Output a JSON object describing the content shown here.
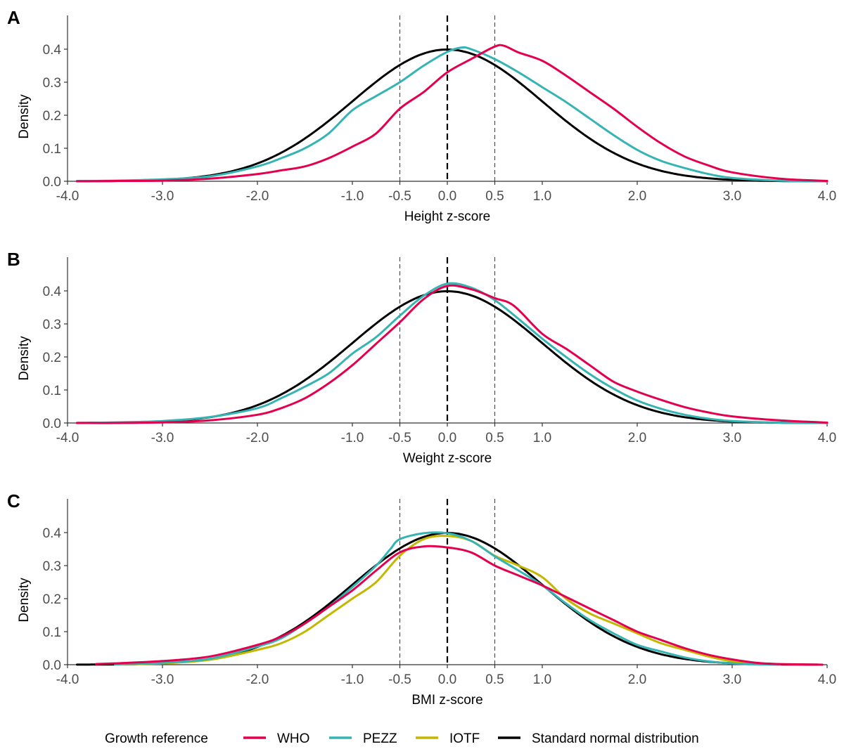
{
  "legend": {
    "title": "Growth reference",
    "items": [
      {
        "name": "WHO",
        "color": "#E4004E"
      },
      {
        "name": "PEZZ",
        "color": "#36B4B4"
      },
      {
        "name": "IOTF",
        "color": "#C2B800"
      },
      {
        "name": "Standard normal distribution",
        "color": "#000000"
      }
    ]
  },
  "chart_data": [
    {
      "type": "line",
      "panel": "A",
      "title": "",
      "xlabel": "Height z-score",
      "ylabel": "Density",
      "xlim": [
        -4,
        4
      ],
      "ylim": [
        0,
        0.5
      ],
      "xticks": [
        "-4.0",
        "-3.0",
        "-2.0",
        "-1.0",
        "-0.5",
        "0.0",
        "0.5",
        "1.0",
        "2.0",
        "3.0",
        "4.0"
      ],
      "xtick_values": [
        -4,
        -3,
        -2,
        -1,
        -0.5,
        0,
        0.5,
        1,
        2,
        3,
        4
      ],
      "yticks": [
        "0.0",
        "0.1",
        "0.2",
        "0.3",
        "0.4"
      ],
      "ytick_values": [
        0,
        0.1,
        0.2,
        0.3,
        0.4
      ],
      "reference_lines": [
        -0.5,
        0,
        0.5
      ],
      "grid": false,
      "legend_position": "bottom",
      "series": [
        {
          "name": "Standard normal distribution",
          "color": "#000000",
          "normal": true,
          "x": [],
          "y": []
        },
        {
          "name": "PEZZ",
          "color": "#36B4B4",
          "x": [
            -3.9,
            -3.5,
            -3,
            -2.5,
            -2,
            -1.75,
            -1.5,
            -1.25,
            -1,
            -0.75,
            -0.5,
            -0.25,
            0,
            0.15,
            0.25,
            0.5,
            0.75,
            1,
            1.25,
            1.5,
            1.75,
            2,
            2.25,
            2.5,
            2.75,
            3,
            3.5,
            4
          ],
          "y": [
            0.001,
            0.002,
            0.006,
            0.015,
            0.045,
            0.07,
            0.1,
            0.145,
            0.215,
            0.258,
            0.3,
            0.35,
            0.392,
            0.405,
            0.4,
            0.37,
            0.33,
            0.285,
            0.24,
            0.19,
            0.14,
            0.095,
            0.062,
            0.04,
            0.022,
            0.01,
            0.002,
            0.0
          ]
        },
        {
          "name": "WHO",
          "color": "#E4004E",
          "x": [
            -3.9,
            -3.5,
            -3,
            -2.5,
            -2,
            -1.75,
            -1.5,
            -1.25,
            -1,
            -0.75,
            -0.5,
            -0.25,
            0,
            0.25,
            0.5,
            0.6,
            0.75,
            1,
            1.25,
            1.5,
            1.75,
            2,
            2.25,
            2.5,
            2.75,
            3,
            3.5,
            4
          ],
          "y": [
            0.0,
            0.001,
            0.002,
            0.008,
            0.022,
            0.033,
            0.045,
            0.07,
            0.105,
            0.145,
            0.22,
            0.27,
            0.33,
            0.37,
            0.408,
            0.41,
            0.39,
            0.365,
            0.32,
            0.27,
            0.22,
            0.165,
            0.115,
            0.075,
            0.048,
            0.027,
            0.008,
            0.001
          ]
        }
      ]
    },
    {
      "type": "line",
      "panel": "B",
      "title": "",
      "xlabel": "Weight z-score",
      "ylabel": "Density",
      "xlim": [
        -4,
        4
      ],
      "ylim": [
        0,
        0.5
      ],
      "xticks": [
        "-4.0",
        "-3.0",
        "-2.0",
        "-1.0",
        "-0.5",
        "0.0",
        "0.5",
        "1.0",
        "2.0",
        "3.0",
        "4.0"
      ],
      "xtick_values": [
        -4,
        -3,
        -2,
        -1,
        -0.5,
        0,
        0.5,
        1,
        2,
        3,
        4
      ],
      "yticks": [
        "0.0",
        "0.1",
        "0.2",
        "0.3",
        "0.4"
      ],
      "ytick_values": [
        0,
        0.1,
        0.2,
        0.3,
        0.4
      ],
      "reference_lines": [
        -0.5,
        0,
        0.5
      ],
      "grid": false,
      "legend_position": "bottom",
      "series": [
        {
          "name": "Standard normal distribution",
          "color": "#000000",
          "normal": true,
          "x": [],
          "y": []
        },
        {
          "name": "PEZZ",
          "color": "#36B4B4",
          "x": [
            -3.9,
            -3.5,
            -3,
            -2.5,
            -2,
            -1.75,
            -1.5,
            -1.25,
            -1,
            -0.75,
            -0.5,
            -0.25,
            0,
            0.25,
            0.5,
            0.75,
            1,
            1.25,
            1.5,
            1.75,
            2,
            2.25,
            2.5,
            2.75,
            3,
            3.5,
            4
          ],
          "y": [
            0.0,
            0.002,
            0.006,
            0.018,
            0.045,
            0.075,
            0.11,
            0.15,
            0.21,
            0.26,
            0.325,
            0.385,
            0.422,
            0.41,
            0.372,
            0.315,
            0.255,
            0.2,
            0.148,
            0.104,
            0.068,
            0.043,
            0.025,
            0.013,
            0.006,
            0.001,
            0.0
          ]
        },
        {
          "name": "WHO",
          "color": "#E4004E",
          "x": [
            -3.9,
            -3.5,
            -3,
            -2.5,
            -2,
            -1.75,
            -1.5,
            -1.25,
            -1,
            -0.75,
            -0.5,
            -0.25,
            0,
            0.25,
            0.5,
            0.7,
            1,
            1.25,
            1.5,
            1.75,
            2,
            2.25,
            2.5,
            2.75,
            3,
            3.5,
            4
          ],
          "y": [
            0.0,
            0.0,
            0.002,
            0.008,
            0.025,
            0.045,
            0.075,
            0.12,
            0.175,
            0.24,
            0.305,
            0.375,
            0.415,
            0.405,
            0.378,
            0.355,
            0.27,
            0.225,
            0.175,
            0.125,
            0.095,
            0.07,
            0.048,
            0.032,
            0.02,
            0.008,
            0.001
          ]
        }
      ]
    },
    {
      "type": "line",
      "panel": "C",
      "title": "",
      "xlabel": "BMI z-score",
      "ylabel": "Density",
      "xlim": [
        -4,
        4
      ],
      "ylim": [
        0,
        0.5
      ],
      "xticks": [
        "-4.0",
        "-3.0",
        "-2.0",
        "-1.0",
        "-0.5",
        "0.0",
        "0.5",
        "1.0",
        "2.0",
        "3.0",
        "4.0"
      ],
      "xtick_values": [
        -4,
        -3,
        -2,
        -1,
        -0.5,
        0,
        0.5,
        1,
        2,
        3,
        4
      ],
      "yticks": [
        "0.0",
        "0.1",
        "0.2",
        "0.3",
        "0.4"
      ],
      "ytick_values": [
        0,
        0.1,
        0.2,
        0.3,
        0.4
      ],
      "reference_lines": [
        -0.5,
        0,
        0.5
      ],
      "grid": false,
      "legend_position": "bottom",
      "series": [
        {
          "name": "Standard normal distribution",
          "color": "#000000",
          "normal": true,
          "x": [],
          "y": []
        },
        {
          "name": "IOTF",
          "color": "#C2B800",
          "x": [
            -3.5,
            -3,
            -2.5,
            -2,
            -1.75,
            -1.5,
            -1.25,
            -1,
            -0.75,
            -0.5,
            -0.25,
            0,
            0.25,
            0.5,
            0.75,
            1,
            1.25,
            1.5,
            1.75,
            2,
            2.25,
            2.5,
            2.75,
            3,
            3.25,
            3.5
          ],
          "y": [
            0.001,
            0.004,
            0.015,
            0.045,
            0.065,
            0.1,
            0.15,
            0.2,
            0.25,
            0.33,
            0.38,
            0.39,
            0.375,
            0.33,
            0.3,
            0.265,
            0.2,
            0.155,
            0.125,
            0.095,
            0.065,
            0.045,
            0.025,
            0.01,
            0.003,
            0.0
          ]
        },
        {
          "name": "PEZZ",
          "color": "#36B4B4",
          "x": [
            -3.5,
            -3,
            -2.5,
            -2,
            -1.75,
            -1.5,
            -1.25,
            -1,
            -0.75,
            -0.6,
            -0.5,
            -0.25,
            0,
            0.25,
            0.5,
            0.75,
            1,
            1.25,
            1.5,
            1.75,
            2,
            2.25,
            2.5,
            2.75,
            3,
            3.25,
            3.5
          ],
          "y": [
            0.001,
            0.006,
            0.018,
            0.055,
            0.08,
            0.125,
            0.175,
            0.235,
            0.3,
            0.35,
            0.38,
            0.398,
            0.398,
            0.375,
            0.328,
            0.285,
            0.24,
            0.185,
            0.135,
            0.095,
            0.06,
            0.04,
            0.022,
            0.01,
            0.004,
            0.001,
            0.0
          ]
        },
        {
          "name": "WHO",
          "color": "#E4004E",
          "x": [
            -3.7,
            -3.5,
            -3,
            -2.5,
            -2,
            -1.75,
            -1.5,
            -1.25,
            -1,
            -0.75,
            -0.5,
            -0.25,
            0,
            0.25,
            0.5,
            0.75,
            1,
            1.25,
            1.5,
            1.75,
            2,
            2.25,
            2.5,
            2.75,
            3,
            3.25,
            3.5,
            3.95
          ],
          "y": [
            0.002,
            0.004,
            0.011,
            0.025,
            0.06,
            0.085,
            0.125,
            0.175,
            0.225,
            0.285,
            0.34,
            0.358,
            0.355,
            0.34,
            0.3,
            0.27,
            0.24,
            0.205,
            0.17,
            0.135,
            0.1,
            0.075,
            0.05,
            0.03,
            0.016,
            0.006,
            0.002,
            0.0
          ]
        }
      ]
    }
  ]
}
